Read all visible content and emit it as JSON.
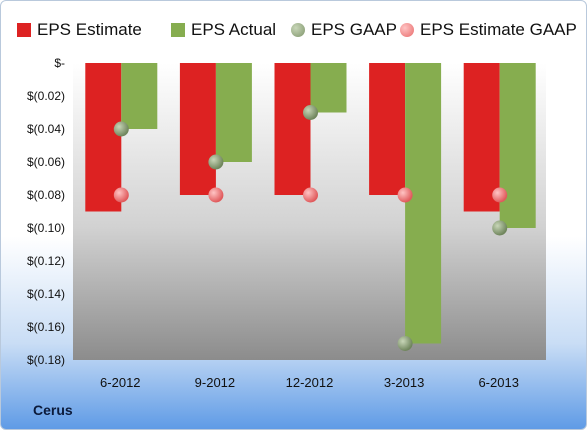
{
  "chart_data": {
    "type": "bar",
    "title": "",
    "xlabel": "",
    "ylabel": "",
    "categories": [
      "6-2012",
      "9-2012",
      "12-2012",
      "3-2013",
      "6-2013"
    ],
    "series": [
      {
        "name": "EPS Estimate",
        "kind": "bar",
        "color": "#dd2222",
        "values": [
          -0.09,
          -0.08,
          -0.08,
          -0.08,
          -0.09
        ]
      },
      {
        "name": "EPS Actual",
        "kind": "bar",
        "color": "#86ad4f",
        "values": [
          -0.04,
          -0.06,
          -0.03,
          -0.17,
          -0.1
        ]
      },
      {
        "name": "EPS GAAP",
        "kind": "marker",
        "color": "#8fa27c",
        "values": [
          -0.04,
          -0.06,
          -0.03,
          -0.17,
          -0.1
        ]
      },
      {
        "name": "EPS Estimate GAAP",
        "kind": "marker",
        "color": "#f07a7a",
        "values": [
          -0.08,
          -0.08,
          -0.08,
          -0.08,
          -0.08
        ]
      }
    ],
    "ylim": [
      -0.18,
      0
    ],
    "yticks": [
      0,
      -0.02,
      -0.04,
      -0.06,
      -0.08,
      -0.1,
      -0.12,
      -0.14,
      -0.16,
      -0.18
    ],
    "ytick_labels": [
      "$-",
      "$(0.02)",
      "$(0.04)",
      "$(0.06)",
      "$(0.08)",
      "$(0.10)",
      "$(0.12)",
      "$(0.14)",
      "$(0.16)",
      "$(0.18)"
    ],
    "legend_position": "top",
    "grid": false
  },
  "company_label": "Cerus"
}
